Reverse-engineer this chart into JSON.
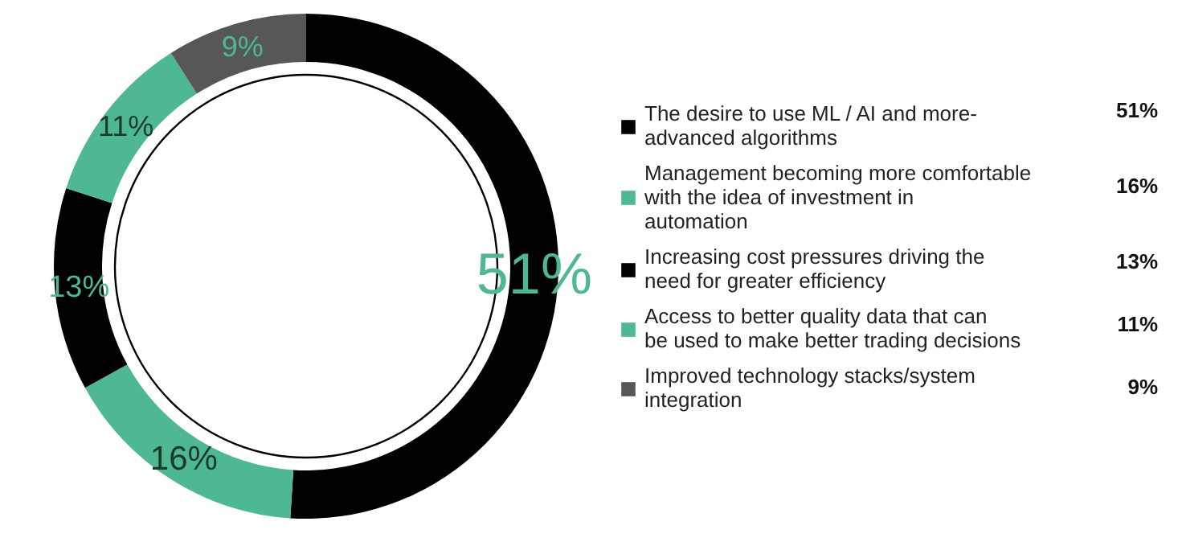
{
  "chart_data": {
    "type": "donut",
    "categories": [
      "The desire to use ML / AI and more-advanced algorithms",
      "Management becoming more comfortable with the idea of investment in automation",
      "Increasing cost pressures driving the need for greater efficiency",
      "Access to better quality data that can be used to make better trading decisions",
      "Improved technology stacks/system integration"
    ],
    "values": [
      51,
      16,
      13,
      11,
      9
    ],
    "colors": [
      "#000000",
      "#4db892",
      "#000000",
      "#4db892",
      "#575757"
    ],
    "value_labels": [
      "51%",
      "16%",
      "13%",
      "11%",
      "9%"
    ],
    "legend": "right"
  }
}
